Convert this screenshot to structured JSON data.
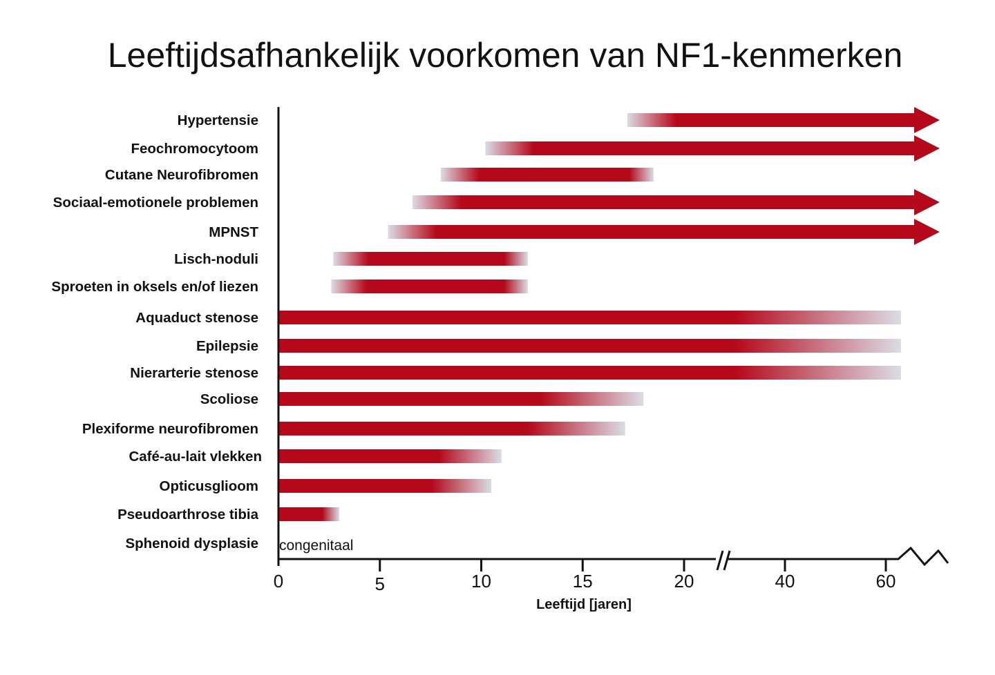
{
  "chart_data": {
    "type": "bar",
    "subtype": "horizontal-range",
    "title": "Leeftijdsafhankelijk voorkomen van NF1-kenmerken",
    "xlabel": "Leeftijd [jaren]",
    "ylabel": "",
    "x_ticks": [
      0,
      5,
      10,
      15,
      20,
      40,
      60
    ],
    "x_tick_labels": [
      "0",
      "5",
      "10",
      "15",
      "20",
      "40",
      "60"
    ],
    "axis_break_between": [
      20,
      40
    ],
    "xlim": [
      0,
      70
    ],
    "grid": false,
    "bar_color": "#b5091b",
    "fade_color": "#dcdce6",
    "series": [
      {
        "label": "Hypertensie",
        "start": 17.2,
        "end": null,
        "continues": true,
        "fade_start": true,
        "fade_end": false
      },
      {
        "label": "Feochromocytoom",
        "start": 10.2,
        "end": null,
        "continues": true,
        "fade_start": true,
        "fade_end": false
      },
      {
        "label": "Cutane Neurofibromen",
        "start": 8.0,
        "end": 18.5,
        "continues": false,
        "fade_start": true,
        "fade_end": true
      },
      {
        "label": "Sociaal-emotionele problemen",
        "start": 6.6,
        "end": null,
        "continues": true,
        "fade_start": true,
        "fade_end": false
      },
      {
        "label": "MPNST",
        "start": 5.4,
        "end": null,
        "continues": true,
        "fade_start": true,
        "fade_end": false
      },
      {
        "label": "Lisch-noduli",
        "start": 2.7,
        "end": 12.3,
        "continues": false,
        "fade_start": true,
        "fade_end": true
      },
      {
        "label": "Sproeten in oksels en/of liezen",
        "start": 2.6,
        "end": 12.3,
        "continues": false,
        "fade_start": true,
        "fade_end": true
      },
      {
        "label": "Aquaduct stenose",
        "start": 0,
        "end": 63,
        "continues": false,
        "fade_start": false,
        "fade_end": true
      },
      {
        "label": "Epilepsie",
        "start": 0,
        "end": 63,
        "continues": false,
        "fade_start": false,
        "fade_end": true
      },
      {
        "label": "Nierarterie stenose",
        "start": 0,
        "end": 63,
        "continues": false,
        "fade_start": false,
        "fade_end": true
      },
      {
        "label": "Scoliose",
        "start": 0,
        "end": 18,
        "continues": false,
        "fade_start": false,
        "fade_end": true
      },
      {
        "label": "Plexiforme neurofibromen",
        "start": 0,
        "end": 17.1,
        "continues": false,
        "fade_start": false,
        "fade_end": true
      },
      {
        "label": "Café-au-lait vlekken",
        "start": 0,
        "end": 11,
        "continues": false,
        "fade_start": false,
        "fade_end": true
      },
      {
        "label": "Opticusglioom",
        "start": 0,
        "end": 10.5,
        "continues": false,
        "fade_start": false,
        "fade_end": true
      },
      {
        "label": "Pseudoarthrose tibia",
        "start": 0,
        "end": 3,
        "continues": false,
        "fade_start": false,
        "fade_end": true
      },
      {
        "label": "Sphenoid dysplasie",
        "start": null,
        "end": null,
        "continues": false,
        "fade_start": false,
        "fade_end": false,
        "note": "congenitaal"
      }
    ]
  }
}
